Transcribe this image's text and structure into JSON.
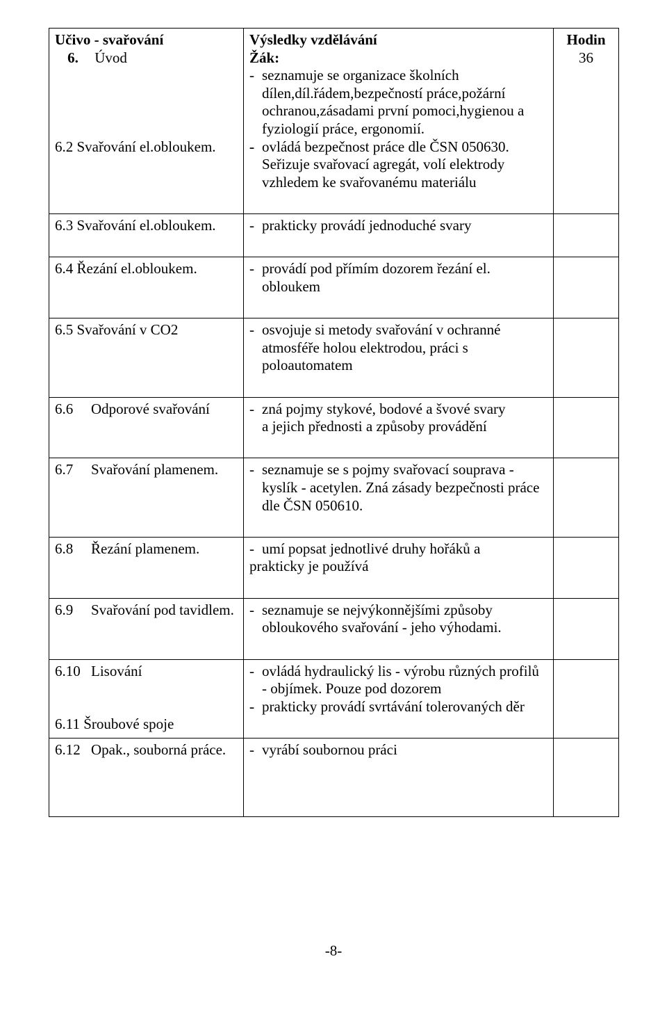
{
  "header": {
    "col1": "Učivo - svařování",
    "col2_line1": "Výsledky vzdělávání",
    "col2_line2": "Žák:",
    "col3": "Hodin"
  },
  "rows": {
    "r6": {
      "num": "6.",
      "label": "Úvod",
      "b1": "seznamuje se organizace školních dílen,díl.řádem,bezpečností práce,požární ochranou,zásadami první pomoci,hygienou a fyziologií práce, ergonomií.",
      "hodin": "36"
    },
    "r62": {
      "left": "6.2 Svařování el.obloukem.",
      "b1": " ovládá bezpečnost práce dle ČSN 050630. Seřizuje svařovací agregát, volí elektrody vzhledem ke svařovanému materiálu"
    },
    "r63": {
      "left": "6.3 Svařování el.obloukem.",
      "b1": "prakticky provádí jednoduché svary"
    },
    "r64": {
      "left": "6.4 Řezání el.obloukem.",
      "b1": "provádí pod přímím dozorem řezání el. obloukem"
    },
    "r65": {
      "left": "6.5 Svařování v CO2",
      "b1": "osvojuje si metody svařování v ochranné atmosféře holou elektrodou, práci s poloautomatem"
    },
    "r66": {
      "left_num": "6.6",
      "left_label": "Odporové svařování",
      "b1": "zná pojmy stykové, bodové a švové svary",
      "b1_cont": "a jejich přednosti a způsoby provádění"
    },
    "r67": {
      "left_num": "6.7",
      "left_label": "Svařování plamenem.",
      "b1": "seznamuje se s pojmy svařovací souprava - kyslík - acetylen. Zná zásady bezpečnosti práce dle ČSN 050610."
    },
    "r68": {
      "left_num": "6.8",
      "left_label": "Řezání plamenem.",
      "b1": "umí popsat jednotlivé druhy hořáků a",
      "b1_cont": "prakticky je používá"
    },
    "r69": {
      "left_num": "6.9",
      "left_label": "Svařování pod tavidlem.",
      "b1": "seznamuje se nejvýkonnějšími způsoby obloukového svařování  - jeho výhodami."
    },
    "r610": {
      "left_num": "6.10",
      "left_label": "Lisování",
      "b1": "ovládá hydraulický lis - výrobu různých profilů - objímek. Pouze pod dozorem"
    },
    "r611": {
      "left": "6.11 Šroubové spoje",
      "b1": "prakticky provádí svrtávání  tolerovaných děr"
    },
    "r612": {
      "left_num": "6.12",
      "left_label": "Opak., souborná práce.",
      "b1": " vyrábí soubornou práci"
    }
  },
  "footer": "-8-"
}
